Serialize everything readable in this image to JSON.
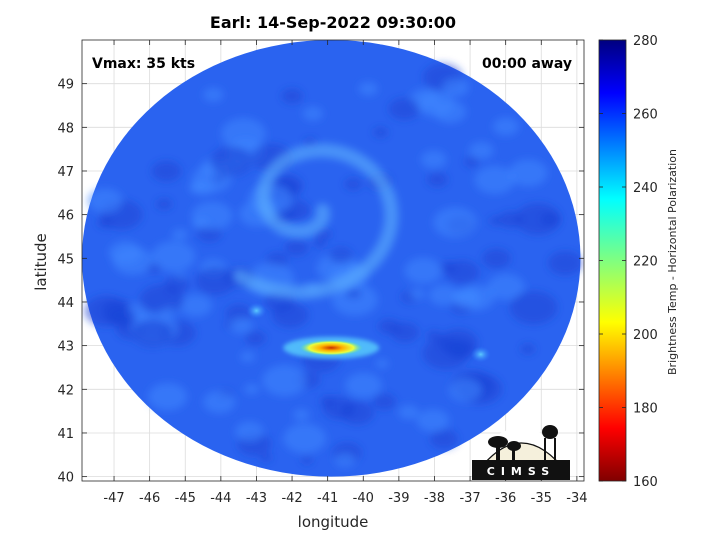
{
  "chart_data": {
    "type": "heatmap",
    "title": "Earl: 14-Sep-2022 09:30:00",
    "xlabel": "longitude",
    "ylabel": "latitude",
    "xlim": [
      -47.9,
      -33.8
    ],
    "ylim": [
      39.9,
      50.0
    ],
    "xticks": [
      -47,
      -46,
      -45,
      -44,
      -43,
      -42,
      -41,
      -40,
      -39,
      -38,
      -37,
      -36,
      -35,
      -34
    ],
    "yticks": [
      40,
      41,
      42,
      43,
      44,
      45,
      46,
      47,
      48,
      49
    ],
    "grid": true,
    "annotations": {
      "vmax": "Vmax: 35 kts",
      "away": "00:00 away"
    },
    "colorbar": {
      "label": "Brightness Temp - Horizontal Polarization",
      "range": [
        160,
        280
      ],
      "ticks": [
        160,
        180,
        200,
        220,
        240,
        260,
        280
      ],
      "colormap": "jet"
    },
    "swath": {
      "center_lon": -40.9,
      "center_lat": 45.0,
      "radius_lon": 7.0,
      "radius_lat": 5.0,
      "background_value": 262
    },
    "features": [
      {
        "name": "warm-spot",
        "lon": -40.9,
        "lat": 42.95,
        "value": 190
      },
      {
        "name": "spiral-band",
        "lon": -41.5,
        "lat": 46.2,
        "value": 243
      },
      {
        "name": "band-spot-1",
        "lon": -43.0,
        "lat": 43.8,
        "value": 240
      },
      {
        "name": "band-spot-2",
        "lon": -36.7,
        "lat": 42.8,
        "value": 242
      }
    ]
  },
  "logo": {
    "text": "CIMSS"
  }
}
